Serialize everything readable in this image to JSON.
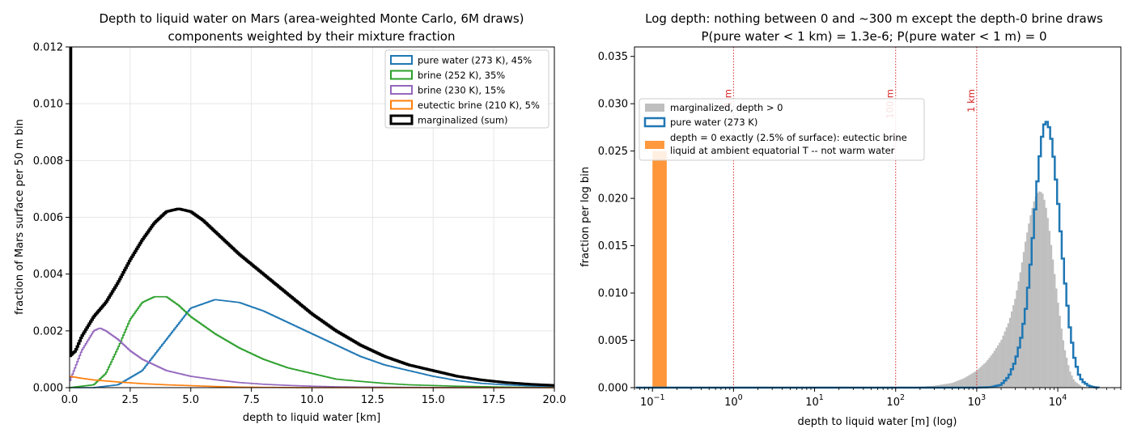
{
  "chart_data": [
    {
      "type": "line",
      "drawstyle": "steps",
      "title_line1": "Depth to liquid water on Mars (area-weighted Monte Carlo, 6M draws)",
      "title_line2": "components weighted by their mixture fraction",
      "xlabel": "depth to liquid water [km]",
      "ylabel": "fraction of Mars surface per 50 m bin",
      "xlim": [
        0,
        20
      ],
      "ylim": [
        0,
        0.012
      ],
      "xticks": [
        "0.0",
        "2.5",
        "5.0",
        "7.5",
        "10.0",
        "12.5",
        "15.0",
        "17.5",
        "20.0"
      ],
      "yticks": [
        "0.000",
        "0.002",
        "0.004",
        "0.006",
        "0.008",
        "0.010",
        "0.012"
      ],
      "grid": true,
      "legend_position": "top-right",
      "series": [
        {
          "name": "pure water (273 K), 45%",
          "color": "#1f77b4",
          "x": [
            0.0,
            1.0,
            2.0,
            3.0,
            4.0,
            5.0,
            6.0,
            7.0,
            8.0,
            9.0,
            10.0,
            11.0,
            12.0,
            13.0,
            14.0,
            15.0,
            16.0,
            17.0,
            18.0,
            19.0,
            20.0
          ],
          "y": [
            0.0,
            0.0,
            0.0001,
            0.0006,
            0.0017,
            0.0028,
            0.0031,
            0.003,
            0.0027,
            0.0023,
            0.0019,
            0.0015,
            0.0011,
            0.0008,
            0.0006,
            0.0004,
            0.00025,
            0.00015,
            0.0001,
            6e-05,
            4e-05
          ]
        },
        {
          "name": "brine (252 K), 35%",
          "color": "#2ca02c",
          "x": [
            0.0,
            1.0,
            1.5,
            2.0,
            2.5,
            3.0,
            3.5,
            4.0,
            4.5,
            5.0,
            6.0,
            7.0,
            8.0,
            9.0,
            10.0,
            11.0,
            12.0,
            13.0,
            14.0,
            16.0,
            18.0,
            20.0
          ],
          "y": [
            0.0,
            0.0001,
            0.0005,
            0.0014,
            0.0024,
            0.003,
            0.0032,
            0.0032,
            0.0029,
            0.0025,
            0.0019,
            0.0014,
            0.001,
            0.0007,
            0.0005,
            0.0003,
            0.00022,
            0.00015,
            0.0001,
            5e-05,
            2e-05,
            0.0
          ]
        },
        {
          "name": "brine (230 K), 15%",
          "color": "#9467bd",
          "x": [
            0.0,
            0.5,
            1.0,
            1.25,
            1.5,
            2.0,
            2.5,
            3.0,
            3.5,
            4.0,
            5.0,
            6.0,
            7.0,
            8.0,
            9.0,
            10.0,
            11.0,
            12.0,
            14.0,
            16.0,
            20.0
          ],
          "y": [
            0.0002,
            0.0013,
            0.002,
            0.0021,
            0.002,
            0.0017,
            0.0013,
            0.001,
            0.0008,
            0.0006,
            0.0004,
            0.00028,
            0.00018,
            0.00012,
            8e-05,
            5e-05,
            3e-05,
            2e-05,
            1e-05,
            0.0,
            0.0
          ]
        },
        {
          "name": "eutectic brine (210 K), 5%",
          "color": "#ff7f0e",
          "x": [
            0.0,
            0.5,
            1.0,
            2.0,
            3.0,
            4.0,
            5.0,
            6.0,
            7.0,
            8.0,
            10.0,
            20.0
          ],
          "y": [
            0.0004,
            0.00033,
            0.00027,
            0.0002,
            0.00014,
            0.0001,
            7e-05,
            4e-05,
            2e-05,
            1e-05,
            0.0,
            0.0
          ]
        },
        {
          "name": "marginalized (sum)",
          "color": "#000000",
          "x": [
            0.0,
            0.25,
            0.5,
            1.0,
            1.5,
            2.0,
            2.5,
            3.0,
            3.5,
            4.0,
            4.5,
            5.0,
            5.5,
            6.0,
            7.0,
            8.0,
            9.0,
            10.0,
            11.0,
            12.0,
            13.0,
            14.0,
            15.0,
            16.0,
            17.0,
            18.0,
            19.0,
            20.0
          ],
          "y": [
            0.0011,
            0.0013,
            0.0018,
            0.0025,
            0.003,
            0.0037,
            0.0045,
            0.0052,
            0.0058,
            0.0062,
            0.0063,
            0.0062,
            0.0059,
            0.0055,
            0.0047,
            0.004,
            0.0033,
            0.0026,
            0.002,
            0.0015,
            0.0011,
            0.0008,
            0.0006,
            0.0004,
            0.00027,
            0.00018,
            0.00012,
            8e-05
          ]
        }
      ],
      "depth_zero_spike": {
        "x": 0,
        "y_exceeds_axis": true
      }
    },
    {
      "type": "bar",
      "title_line1": "Log depth: nothing between 0 and ~300 m except the depth-0 brine draws",
      "title_line2": "P(pure water < 1 km) = 1.3e-6;   P(pure water < 1 m) = 0",
      "xlabel": "depth to liquid water [m] (log)",
      "ylabel": "fraction per log bin",
      "xscale": "log",
      "xlim": [
        0.06,
        60000
      ],
      "ylim": [
        0,
        0.036
      ],
      "xticks": [
        {
          "value": 0.1,
          "base": "10",
          "exp": "−1"
        },
        {
          "value": 1,
          "base": "10",
          "exp": "0"
        },
        {
          "value": 10,
          "base": "10",
          "exp": "1"
        },
        {
          "value": 100,
          "base": "10",
          "exp": "2"
        },
        {
          "value": 1000,
          "base": "10",
          "exp": "3"
        },
        {
          "value": 10000,
          "base": "10",
          "exp": "4"
        }
      ],
      "yticks": [
        "0.000",
        "0.005",
        "0.010",
        "0.015",
        "0.020",
        "0.025",
        "0.030",
        "0.035"
      ],
      "grid": false,
      "legend_position": "upper-left",
      "reference_lines": [
        {
          "x": 1,
          "label": "1 m",
          "color": "#d62728"
        },
        {
          "x": 100,
          "label": "100 m",
          "color": "#d62728"
        },
        {
          "x": 1000,
          "label": "1 km",
          "color": "#d62728"
        }
      ],
      "depth_zero_bar": {
        "x_start": 0.1,
        "x_end": 0.15,
        "value": 0.025,
        "color": "#ff7f0e",
        "label_line1": "depth = 0 exactly (2.5% of surface): eutectic brine",
        "label_line2": "liquid at ambient equatorial T -- not warm water"
      },
      "series": [
        {
          "name": "marginalized, depth > 0",
          "style": "filled-histogram",
          "color": "#bfbfbf",
          "x": [
            100,
            200,
            300,
            500,
            700,
            1000,
            1300,
            1600,
            2000,
            2500,
            3000,
            3500,
            4000,
            4500,
            5000,
            5500,
            6000,
            6500,
            7000,
            7500,
            8000,
            9000,
            10000,
            11000,
            12000,
            14000,
            16000,
            20000,
            25000
          ],
          "y": [
            0.0,
            0.0001,
            0.0002,
            0.0005,
            0.001,
            0.0018,
            0.0027,
            0.0037,
            0.005,
            0.007,
            0.0095,
            0.0125,
            0.0155,
            0.0178,
            0.0195,
            0.0205,
            0.0208,
            0.0205,
            0.0195,
            0.018,
            0.0162,
            0.0125,
            0.0092,
            0.0065,
            0.0043,
            0.0018,
            0.0007,
            0.0001,
            0.0
          ]
        },
        {
          "name": "pure water (273 K)",
          "style": "step",
          "color": "#1f77b4",
          "x": [
            1000,
            1500,
            2000,
            2500,
            3000,
            3500,
            4000,
            4500,
            5000,
            5500,
            6000,
            6500,
            7000,
            7500,
            8000,
            8500,
            9000,
            10000,
            11000,
            12000,
            14000,
            16000,
            18000,
            20000,
            24000,
            28000,
            32000
          ],
          "y": [
            0.0,
            5e-05,
            0.0003,
            0.0012,
            0.0028,
            0.005,
            0.008,
            0.012,
            0.0165,
            0.021,
            0.0245,
            0.027,
            0.0282,
            0.028,
            0.0272,
            0.0258,
            0.024,
            0.02,
            0.0158,
            0.012,
            0.0065,
            0.0032,
            0.0015,
            0.0007,
            0.0002,
            5e-05,
            0.0
          ]
        }
      ]
    }
  ]
}
